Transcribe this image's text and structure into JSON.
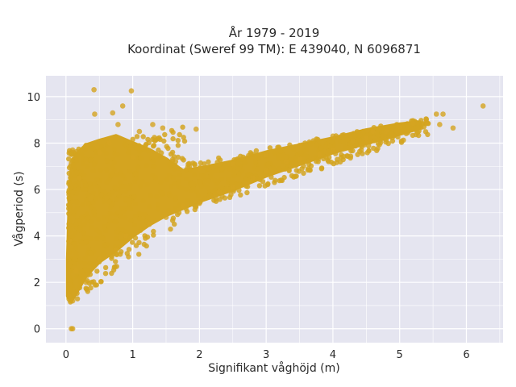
{
  "chart_data": {
    "type": "scatter",
    "title_line1": "År 1979 - 2019",
    "title_line2": "Koordinat (Sweref 99 TM): E 439040, N 6096871",
    "xlabel": "Signifikant våghöjd (m)",
    "ylabel": "Vågperiod (s)",
    "xlim": [
      -0.3,
      6.55
    ],
    "ylim": [
      -0.6,
      10.9
    ],
    "xticks": [
      0,
      1,
      2,
      3,
      4,
      5,
      6
    ],
    "yticks": [
      0,
      2,
      4,
      6,
      8,
      10
    ],
    "grid": true,
    "marker_color": "#D4A420",
    "plot_bg": "#E5E5F0",
    "approx_points": [
      {
        "x": 0.05,
        "y": 1.4
      },
      {
        "x": 0.05,
        "y": 3.8
      },
      {
        "x": 0.1,
        "y": 1.2
      },
      {
        "x": 0.1,
        "y": 7.7
      },
      {
        "x": 0.15,
        "y": 2.5
      },
      {
        "x": 0.2,
        "y": 6.5
      },
      {
        "x": 0.3,
        "y": 2.0
      },
      {
        "x": 0.3,
        "y": 7.9
      },
      {
        "x": 0.42,
        "y": 10.3
      },
      {
        "x": 0.43,
        "y": 9.25
      },
      {
        "x": 0.5,
        "y": 3.0
      },
      {
        "x": 0.5,
        "y": 7.6
      },
      {
        "x": 0.65,
        "y": 8.0
      },
      {
        "x": 0.7,
        "y": 9.3
      },
      {
        "x": 0.75,
        "y": 3.4
      },
      {
        "x": 0.78,
        "y": 8.8
      },
      {
        "x": 0.85,
        "y": 9.6
      },
      {
        "x": 0.9,
        "y": 4.0
      },
      {
        "x": 0.98,
        "y": 10.25
      },
      {
        "x": 1.0,
        "y": 7.4
      },
      {
        "x": 1.1,
        "y": 8.5
      },
      {
        "x": 1.25,
        "y": 4.5
      },
      {
        "x": 1.3,
        "y": 8.8
      },
      {
        "x": 1.45,
        "y": 8.65
      },
      {
        "x": 1.5,
        "y": 4.8
      },
      {
        "x": 1.6,
        "y": 7.3
      },
      {
        "x": 1.75,
        "y": 5.3
      },
      {
        "x": 1.95,
        "y": 8.6
      },
      {
        "x": 2.0,
        "y": 5.4
      },
      {
        "x": 2.0,
        "y": 6.9
      },
      {
        "x": 2.3,
        "y": 5.9
      },
      {
        "x": 2.5,
        "y": 6.1
      },
      {
        "x": 2.5,
        "y": 7.1
      },
      {
        "x": 2.8,
        "y": 6.5
      },
      {
        "x": 3.0,
        "y": 6.8
      },
      {
        "x": 3.0,
        "y": 7.5
      },
      {
        "x": 3.3,
        "y": 7.2
      },
      {
        "x": 3.5,
        "y": 7.3
      },
      {
        "x": 3.5,
        "y": 7.9
      },
      {
        "x": 3.8,
        "y": 7.5
      },
      {
        "x": 4.0,
        "y": 7.7
      },
      {
        "x": 4.0,
        "y": 8.3
      },
      {
        "x": 4.3,
        "y": 8.1
      },
      {
        "x": 4.5,
        "y": 8.2
      },
      {
        "x": 4.6,
        "y": 8.5
      },
      {
        "x": 4.8,
        "y": 8.5
      },
      {
        "x": 5.0,
        "y": 8.7
      },
      {
        "x": 5.2,
        "y": 8.85
      },
      {
        "x": 5.4,
        "y": 8.9
      },
      {
        "x": 5.55,
        "y": 9.25
      },
      {
        "x": 5.6,
        "y": 8.8
      },
      {
        "x": 5.65,
        "y": 9.25
      },
      {
        "x": 5.8,
        "y": 8.65
      },
      {
        "x": 6.25,
        "y": 9.6
      },
      {
        "x": 0.1,
        "y": 0.0
      },
      {
        "x": 0.08,
        "y": 0.0
      }
    ]
  }
}
